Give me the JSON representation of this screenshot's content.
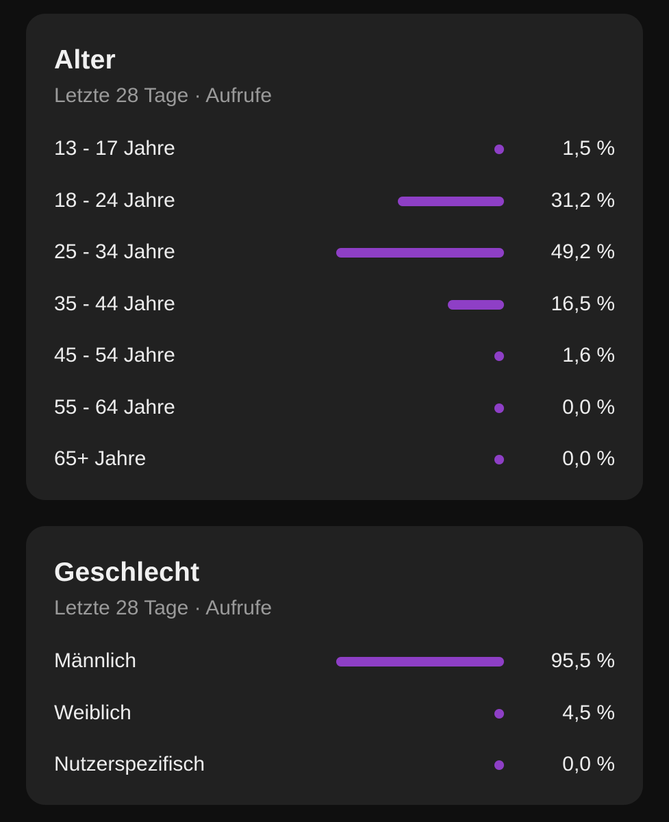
{
  "colors": {
    "page_background": "#0f0f0f",
    "card_background": "#212121",
    "bar": "#8e3fc6",
    "title_text": "#f1f1f1",
    "subtitle_text": "#9a9a9a",
    "row_text": "#ededed"
  },
  "age": {
    "title": "Alter",
    "subtitle": "Letzte 28 Tage · Aufrufe",
    "rows": [
      {
        "label": "13 - 17 Jahre",
        "value": "1,5 %",
        "percent": 1.5
      },
      {
        "label": "18 - 24 Jahre",
        "value": "31,2 %",
        "percent": 31.2
      },
      {
        "label": "25 - 34 Jahre",
        "value": "49,2 %",
        "percent": 49.2
      },
      {
        "label": "35 - 44 Jahre",
        "value": "16,5 %",
        "percent": 16.5
      },
      {
        "label": "45 - 54 Jahre",
        "value": "1,6 %",
        "percent": 1.6
      },
      {
        "label": "55 - 64 Jahre",
        "value": "0,0 %",
        "percent": 0.0
      },
      {
        "label": "65+ Jahre",
        "value": "0,0 %",
        "percent": 0.0
      }
    ]
  },
  "gender": {
    "title": "Geschlecht",
    "subtitle": "Letzte 28 Tage · Aufrufe",
    "rows": [
      {
        "label": "Männlich",
        "value": "95,5 %",
        "percent": 95.5
      },
      {
        "label": "Weiblich",
        "value": "4,5 %",
        "percent": 4.5
      },
      {
        "label": "Nutzerspezifisch",
        "value": "0,0 %",
        "percent": 0.0
      }
    ]
  }
}
